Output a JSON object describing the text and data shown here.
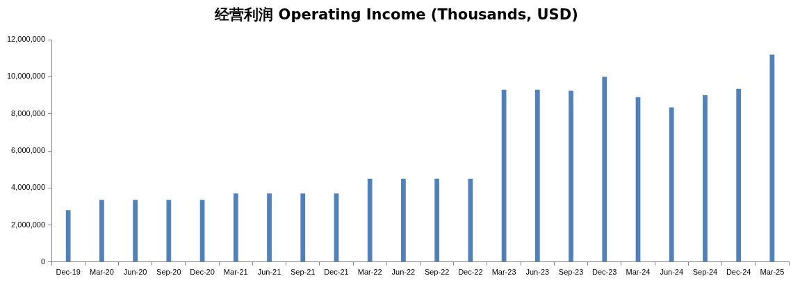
{
  "chart_data": {
    "type": "bar",
    "title": "经营利润 Operating Income (Thousands, USD)",
    "categories": [
      "Dec-19",
      "Mar-20",
      "Jun-20",
      "Sep-20",
      "Dec-20",
      "Mar-21",
      "Jun-21",
      "Sep-21",
      "Dec-21",
      "Mar-22",
      "Jun-22",
      "Sep-22",
      "Dec-22",
      "Mar-23",
      "Jun-23",
      "Sep-23",
      "Dec-23",
      "Mar-24",
      "Jun-24",
      "Sep-24",
      "Dec-24",
      "Mar-25"
    ],
    "values": [
      2800000,
      3350000,
      3350000,
      3350000,
      3350000,
      3700000,
      3700000,
      3700000,
      3700000,
      4500000,
      4500000,
      4500000,
      4500000,
      9300000,
      9300000,
      9250000,
      10000000,
      8900000,
      8350000,
      9000000,
      9350000,
      11200000
    ],
    "color": "#4f81bd",
    "ylim": [
      0,
      12000000
    ],
    "yticks": [
      0,
      {
        "value": 2000000,
        "label": "2,000,000"
      },
      {
        "value": 4000000,
        "label": "4,000,000"
      },
      {
        "value": 6000000,
        "label": "6,000,000"
      },
      {
        "value": 8000000,
        "label": "8,000,000"
      },
      {
        "value": 10000000,
        "label": "10,000,000"
      },
      {
        "value": 12000000,
        "label": "12,000,000"
      }
    ]
  }
}
